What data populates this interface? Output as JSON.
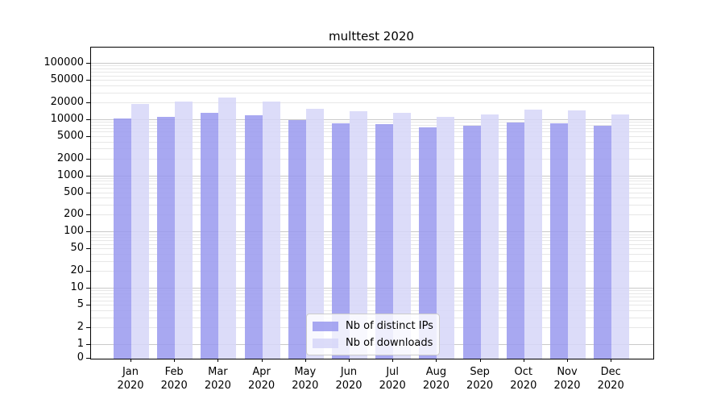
{
  "chart_data": {
    "type": "bar",
    "title": "multtest 2020",
    "categories": [
      "Jan",
      "Feb",
      "Mar",
      "Apr",
      "May",
      "Jun",
      "Jul",
      "Aug",
      "Sep",
      "Oct",
      "Nov",
      "Dec"
    ],
    "x_year_suffix": "2020",
    "series": [
      {
        "name": "Nb of distinct IPs",
        "color": "#9999ee",
        "values": [
          10700,
          11200,
          13400,
          12000,
          10000,
          8700,
          8300,
          7400,
          7900,
          8900,
          8700,
          7900
        ]
      },
      {
        "name": "Nb of downloads",
        "color": "#d6d6f8",
        "values": [
          19000,
          21600,
          25200,
          21400,
          15800,
          14100,
          13400,
          11500,
          12700,
          15300,
          15000,
          12400
        ]
      }
    ],
    "xlabel": "",
    "ylabel": "",
    "yscale": "log with 1-2-5 ticks and 0 baseline",
    "yticks": [
      0,
      1,
      2,
      5,
      10,
      20,
      50,
      100,
      200,
      500,
      1000,
      2000,
      5000,
      10000,
      20000,
      50000,
      100000
    ],
    "ylim": [
      0,
      193000
    ],
    "grid": "horizontal major and minor log gridlines",
    "grid_major_color": "#c9c9c9",
    "grid_minor_color": "#e7e7e7",
    "legend": {
      "position": "lower center",
      "entries": [
        "Nb of distinct IPs",
        "Nb of downloads"
      ]
    }
  }
}
